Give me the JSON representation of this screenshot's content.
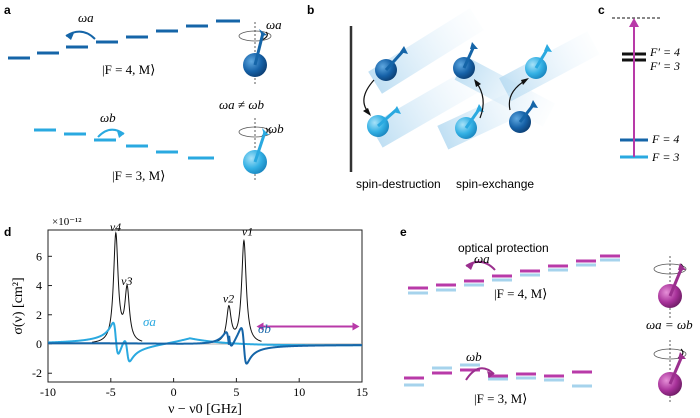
{
  "panels": {
    "a": {
      "label": "a",
      "omega_a": "ωa",
      "omega_b": "ωb",
      "state_upper": "|F = 4, M⟩",
      "state_lower": "|F = 3, M⟩",
      "inequality": "ωa ≠ ωb"
    },
    "b": {
      "label": "b",
      "left_caption": "spin-destruction",
      "right_caption": "spin-exchange"
    },
    "c": {
      "label": "c",
      "levels": [
        "F′ = 4",
        "F′ = 3",
        "F = 4",
        "F = 3"
      ]
    },
    "d": {
      "label": "d",
      "exponent": "×10⁻¹²",
      "peak_labels": [
        "ν4",
        "ν3",
        "ν2",
        "ν1"
      ],
      "sigma_a": "σa",
      "sigma_b": "σb"
    },
    "e": {
      "label": "e",
      "title": "optical protection",
      "omega_a": "ωa",
      "omega_b": "ωb",
      "state_upper": "|F = 4, M⟩",
      "state_lower": "|F = 3, M⟩",
      "equality": "ωa = ωb"
    }
  },
  "colors": {
    "dark_blue": "#1565a8",
    "light_blue": "#2aa9e0",
    "magenta": "#b83aa8",
    "black": "#111111"
  },
  "chart_data": {
    "type": "line",
    "xlabel": "ν − ν0 [GHz]",
    "ylabel": "σ(ν) [cm²]",
    "xlim": [
      -10,
      15
    ],
    "ylim": [
      -2.6,
      7.8
    ],
    "xticks": [
      -10,
      -5,
      0,
      5,
      10,
      15
    ],
    "yticks": [
      -2,
      0,
      2,
      4,
      6
    ],
    "peaks": [
      {
        "name": "ν4",
        "x": -4.6,
        "height": 7.4
      },
      {
        "name": "ν3",
        "x": -3.7,
        "height": 3.6
      },
      {
        "name": "ν2",
        "x": 4.4,
        "height": 2.4
      },
      {
        "name": "ν1",
        "x": 5.6,
        "height": 7.0
      }
    ],
    "series": [
      {
        "name": "σa",
        "peaks": [
          -4.6,
          -3.7
        ],
        "color": "#2aa9e0"
      },
      {
        "name": "σb",
        "peaks": [
          4.4,
          5.6
        ],
        "color": "#1565a8"
      }
    ],
    "arrow_range": [
      6.6,
      14.8
    ]
  }
}
